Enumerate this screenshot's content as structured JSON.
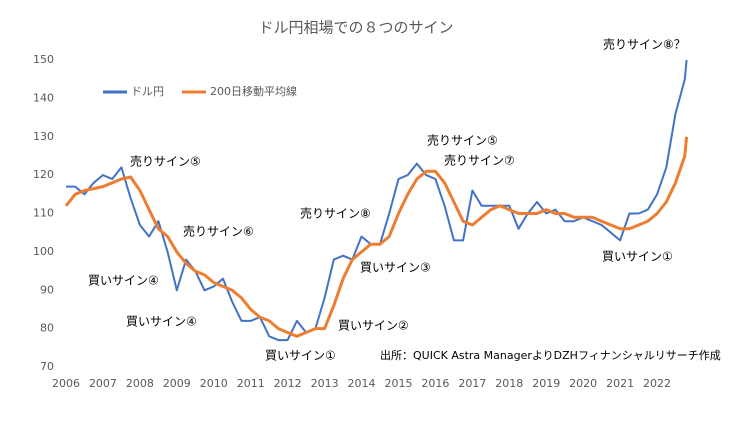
{
  "chart_data": {
    "type": "line",
    "title": "ドル円相場での８つのサイン",
    "source": "出所：QUICK Astra ManagerよりDZHフィナンシャルリサーチ作成",
    "legend": "top-left",
    "grid": false,
    "xlim": [
      2006,
      2023
    ],
    "xticks": [
      2006,
      2007,
      2008,
      2009,
      2010,
      2011,
      2012,
      2013,
      2014,
      2015,
      2016,
      2017,
      2018,
      2019,
      2020,
      2021,
      2022
    ],
    "ylim": [
      70,
      150
    ],
    "yticks": [
      70,
      80,
      90,
      100,
      110,
      120,
      130,
      140,
      150
    ],
    "x": [
      2006.0,
      2006.25,
      2006.5,
      2006.75,
      2007.0,
      2007.25,
      2007.5,
      2007.75,
      2008.0,
      2008.25,
      2008.5,
      2008.75,
      2009.0,
      2009.25,
      2009.5,
      2009.75,
      2010.0,
      2010.25,
      2010.5,
      2010.75,
      2011.0,
      2011.25,
      2011.5,
      2011.75,
      2012.0,
      2012.25,
      2012.5,
      2012.75,
      2013.0,
      2013.25,
      2013.5,
      2013.75,
      2014.0,
      2014.25,
      2014.5,
      2014.75,
      2015.0,
      2015.25,
      2015.5,
      2015.75,
      2016.0,
      2016.25,
      2016.5,
      2016.75,
      2017.0,
      2017.25,
      2017.5,
      2017.75,
      2018.0,
      2018.25,
      2018.5,
      2018.75,
      2019.0,
      2019.25,
      2019.5,
      2019.75,
      2020.0,
      2020.25,
      2020.5,
      2020.75,
      2021.0,
      2021.25,
      2021.5,
      2021.75,
      2022.0,
      2022.25,
      2022.5,
      2022.75,
      2022.8
    ],
    "series": [
      {
        "name": "ドル円",
        "color": "#4472c4",
        "values": [
          117,
          117,
          115,
          118,
          120,
          119,
          122,
          114,
          107,
          104,
          108,
          100,
          90,
          98,
          95,
          90,
          91,
          93,
          87,
          82,
          82,
          83,
          78,
          77,
          77,
          82,
          79,
          80,
          88,
          98,
          99,
          98,
          104,
          102,
          102,
          110,
          119,
          120,
          123,
          120,
          119,
          112,
          103,
          103,
          116,
          112,
          112,
          112,
          112,
          106,
          110,
          113,
          110,
          111,
          108,
          108,
          109,
          108,
          107,
          105,
          103,
          110,
          110,
          111,
          115,
          122,
          136,
          145,
          150
        ]
      },
      {
        "name": "200日移動平均線",
        "color": "#ed7d31",
        "values": [
          112,
          115,
          116,
          116.5,
          117,
          118,
          119,
          119.5,
          116,
          111,
          106,
          104,
          100,
          97,
          95,
          94,
          92,
          91,
          90,
          88,
          85,
          83,
          82,
          80,
          79,
          78,
          79,
          80,
          80,
          86,
          93,
          98,
          100,
          102,
          102,
          104,
          110,
          115,
          119,
          121,
          121,
          118,
          113,
          108,
          107,
          109,
          111,
          112,
          111,
          110,
          110,
          110,
          111,
          110,
          110,
          109,
          109,
          109,
          108,
          107,
          106,
          106,
          107,
          108,
          110,
          113,
          118,
          125,
          130
        ]
      }
    ],
    "annotations": [
      "売りサイン⑧？",
      "売りサイン⑤",
      "売りサイン⑤",
      "売りサイン⑦",
      "売りサイン⑧",
      "売りサイン⑥",
      "買いサイン④",
      "買いサイン④",
      "買いサイン③",
      "買いサイン②",
      "買いサイン①",
      "買いサイン①"
    ]
  }
}
